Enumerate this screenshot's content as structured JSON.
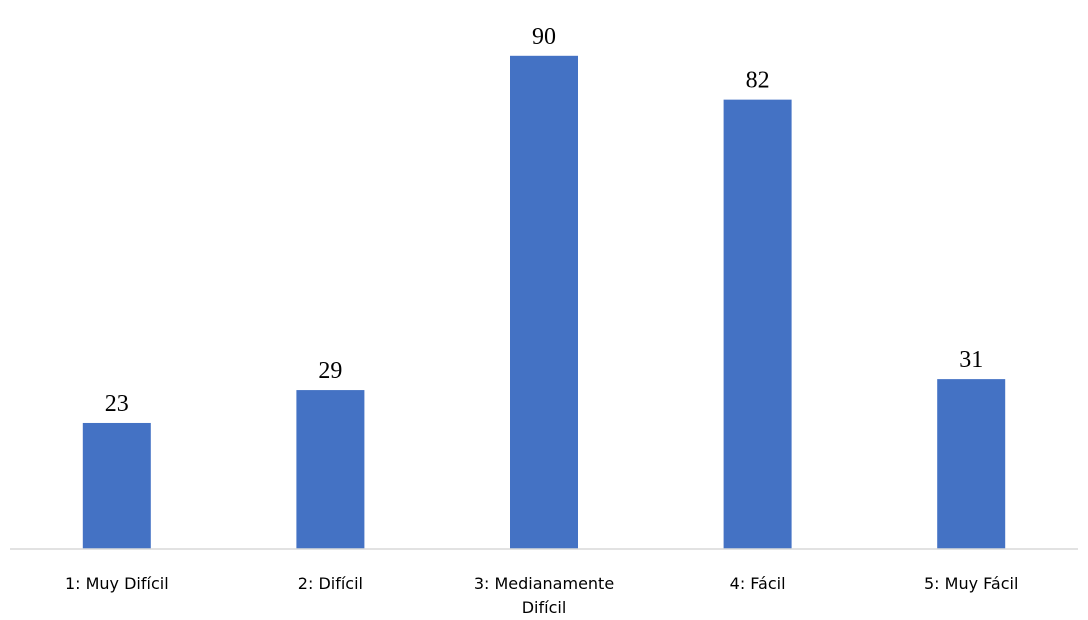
{
  "chart_data": {
    "type": "bar",
    "categories": [
      "1: Muy Difícil",
      "2: Difícil",
      "3: Medianamente Difícil",
      "4: Fácil",
      "5: Muy Fácil"
    ],
    "category_lines": [
      [
        "1: Muy Difícil"
      ],
      [
        "2: Difícil"
      ],
      [
        "3: Medianamente",
        "Difícil"
      ],
      [
        "4: Fácil"
      ],
      [
        "5: Muy Fácil"
      ]
    ],
    "values": [
      23,
      29,
      90,
      82,
      31
    ],
    "title": "",
    "xlabel": "",
    "ylabel": "",
    "ylim": [
      0,
      100
    ],
    "grid": false,
    "legend": "none",
    "data_labels": true,
    "bar_color": "#4472C4"
  }
}
